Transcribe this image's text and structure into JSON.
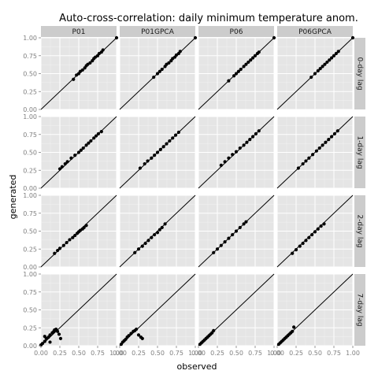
{
  "chart_data": {
    "type": "scatter",
    "title": "Auto-cross-correlation: daily minimum temperature anom.",
    "xlabel": "observed",
    "ylabel": "generated",
    "xlim": [
      0,
      1
    ],
    "ylim": [
      0,
      1
    ],
    "xticks": [
      "0.00",
      "0.25",
      "0.50",
      "0.75",
      "1.00"
    ],
    "yticks": [
      "0.00",
      "0.25",
      "0.50",
      "0.75",
      "1.00"
    ],
    "grid": true,
    "reference_line": "y = x",
    "columns": [
      "P01",
      "P01GPCA",
      "P06",
      "P06GPCA"
    ],
    "rows": [
      "0-day lag",
      "1-day lag",
      "2-day lag",
      "7-day lag"
    ],
    "panels": [
      [
        {
          "x": [
            1.0,
            0.43,
            0.47,
            0.5,
            0.52,
            0.55,
            0.58,
            0.6,
            0.62,
            0.65,
            0.68,
            0.7,
            0.72,
            0.75,
            0.77,
            0.8,
            0.82
          ],
          "y": [
            1.0,
            0.42,
            0.48,
            0.5,
            0.53,
            0.55,
            0.58,
            0.61,
            0.63,
            0.65,
            0.68,
            0.71,
            0.73,
            0.75,
            0.78,
            0.8,
            0.83
          ]
        },
        {
          "x": [
            1.0,
            0.45,
            0.5,
            0.53,
            0.56,
            0.6,
            0.62,
            0.65,
            0.68,
            0.7,
            0.73,
            0.75,
            0.78,
            0.8
          ],
          "y": [
            1.0,
            0.45,
            0.5,
            0.53,
            0.56,
            0.6,
            0.63,
            0.65,
            0.68,
            0.71,
            0.73,
            0.76,
            0.78,
            0.81
          ]
        },
        {
          "x": [
            1.0,
            0.4,
            0.47,
            0.5,
            0.53,
            0.56,
            0.6,
            0.63,
            0.66,
            0.69,
            0.72,
            0.75,
            0.78,
            0.8
          ],
          "y": [
            1.0,
            0.4,
            0.47,
            0.5,
            0.53,
            0.56,
            0.6,
            0.63,
            0.66,
            0.69,
            0.72,
            0.75,
            0.78,
            0.8
          ]
        },
        {
          "x": [
            1.0,
            0.45,
            0.5,
            0.54,
            0.57,
            0.6,
            0.63,
            0.66,
            0.69,
            0.72,
            0.75,
            0.78,
            0.81
          ],
          "y": [
            1.0,
            0.45,
            0.5,
            0.54,
            0.57,
            0.6,
            0.63,
            0.66,
            0.69,
            0.72,
            0.75,
            0.78,
            0.81
          ]
        }
      ],
      [
        {
          "x": [
            0.25,
            0.28,
            0.32,
            0.35,
            0.4,
            0.45,
            0.5,
            0.53,
            0.56,
            0.6,
            0.63,
            0.66,
            0.7,
            0.73,
            0.76,
            0.8
          ],
          "y": [
            0.27,
            0.3,
            0.34,
            0.37,
            0.42,
            0.46,
            0.5,
            0.53,
            0.56,
            0.6,
            0.63,
            0.66,
            0.7,
            0.73,
            0.76,
            0.79
          ]
        },
        {
          "x": [
            0.27,
            0.33,
            0.37,
            0.42,
            0.46,
            0.5,
            0.54,
            0.58,
            0.62,
            0.66,
            0.7,
            0.74,
            0.78
          ],
          "y": [
            0.28,
            0.34,
            0.38,
            0.42,
            0.46,
            0.5,
            0.54,
            0.58,
            0.62,
            0.66,
            0.7,
            0.74,
            0.78
          ]
        },
        {
          "x": [
            0.3,
            0.35,
            0.4,
            0.45,
            0.5,
            0.55,
            0.6,
            0.64,
            0.68,
            0.72,
            0.76,
            0.8
          ],
          "y": [
            0.32,
            0.37,
            0.42,
            0.47,
            0.51,
            0.56,
            0.6,
            0.64,
            0.68,
            0.72,
            0.76,
            0.8
          ]
        },
        {
          "x": [
            0.28,
            0.34,
            0.38,
            0.42,
            0.47,
            0.52,
            0.56,
            0.6,
            0.64,
            0.68,
            0.72,
            0.76,
            0.8
          ],
          "y": [
            0.28,
            0.34,
            0.38,
            0.42,
            0.47,
            0.52,
            0.56,
            0.6,
            0.64,
            0.68,
            0.72,
            0.76,
            0.8
          ]
        }
      ],
      [
        {
          "x": [
            0.18,
            0.22,
            0.25,
            0.3,
            0.34,
            0.38,
            0.42,
            0.45,
            0.48,
            0.5,
            0.52,
            0.55,
            0.57,
            0.6
          ],
          "y": [
            0.19,
            0.23,
            0.26,
            0.3,
            0.34,
            0.38,
            0.41,
            0.44,
            0.47,
            0.49,
            0.51,
            0.53,
            0.55,
            0.58
          ]
        },
        {
          "x": [
            0.2,
            0.25,
            0.3,
            0.34,
            0.38,
            0.42,
            0.46,
            0.5,
            0.53,
            0.56,
            0.6
          ],
          "y": [
            0.2,
            0.25,
            0.29,
            0.33,
            0.37,
            0.41,
            0.45,
            0.48,
            0.52,
            0.55,
            0.6
          ]
        },
        {
          "x": [
            0.2,
            0.25,
            0.3,
            0.35,
            0.4,
            0.45,
            0.5,
            0.55,
            0.6,
            0.63
          ],
          "y": [
            0.2,
            0.25,
            0.3,
            0.35,
            0.4,
            0.45,
            0.5,
            0.55,
            0.6,
            0.63
          ]
        },
        {
          "x": [
            0.2,
            0.25,
            0.3,
            0.34,
            0.38,
            0.42,
            0.46,
            0.5,
            0.54,
            0.58,
            0.62
          ],
          "y": [
            0.19,
            0.24,
            0.29,
            0.33,
            0.37,
            0.41,
            0.45,
            0.49,
            0.53,
            0.57,
            0.6
          ]
        }
      ],
      [
        {
          "x": [
            0.0,
            0.02,
            0.05,
            0.07,
            0.1,
            0.12,
            0.15,
            0.17,
            0.18,
            0.2,
            0.22,
            0.24,
            0.26,
            0.05,
            0.12
          ],
          "y": [
            0.01,
            0.03,
            0.06,
            0.1,
            0.12,
            0.15,
            0.18,
            0.2,
            0.22,
            0.23,
            0.2,
            0.16,
            0.1,
            0.13,
            0.05
          ]
        },
        {
          "x": [
            0.02,
            0.04,
            0.06,
            0.08,
            0.1,
            0.12,
            0.15,
            0.18,
            0.2,
            0.22,
            0.25,
            0.28,
            0.3
          ],
          "y": [
            0.02,
            0.05,
            0.07,
            0.09,
            0.12,
            0.14,
            0.17,
            0.2,
            0.21,
            0.23,
            0.15,
            0.12,
            0.1
          ]
        },
        {
          "x": [
            0.02,
            0.04,
            0.06,
            0.08,
            0.1,
            0.12,
            0.14,
            0.16,
            0.18,
            0.2
          ],
          "y": [
            0.02,
            0.04,
            0.06,
            0.08,
            0.1,
            0.12,
            0.14,
            0.16,
            0.18,
            0.21
          ]
        },
        {
          "x": [
            0.02,
            0.04,
            0.06,
            0.08,
            0.1,
            0.12,
            0.14,
            0.16,
            0.18,
            0.2,
            0.22
          ],
          "y": [
            0.02,
            0.04,
            0.06,
            0.08,
            0.1,
            0.12,
            0.14,
            0.16,
            0.18,
            0.2,
            0.26
          ]
        }
      ]
    ]
  }
}
